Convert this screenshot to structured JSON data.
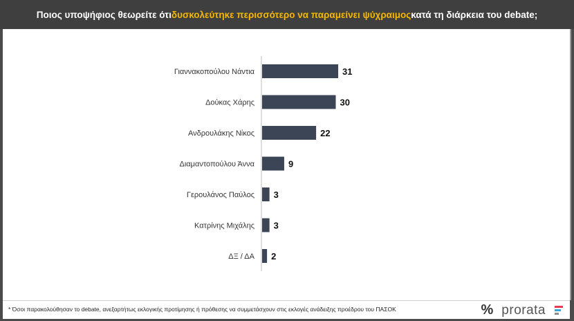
{
  "header": {
    "title_pre": "Ποιος υποψήφιος θεωρείτε ότι ",
    "title_highlight": "δυσκολεύτηκε περισσότερο να παραμείνει ψύχραιμος",
    "title_post": " κατά τη διάρκεια του debate;"
  },
  "footer": {
    "note": "* Όσοι παρακολούθησαν το debate, ανεξαρτήτως εκλογικής προτίμησης ή πρόθεσης να συμμετάσχουν στις εκλογές ανάδειξης προέδρου του ΠΑΣΟΚ",
    "logo_symbol": "%",
    "logo_text": "prorata"
  },
  "colors": {
    "bar": "#3b4555",
    "highlight": "#f5b800",
    "logo_bar_1": "#e63b5b",
    "logo_bar_2": "#3aa3d9",
    "logo_bar_3": "#8c8c8c"
  },
  "chart_data": {
    "type": "bar",
    "orientation": "horizontal",
    "categories": [
      "Γιαννακοπούλου Νάντια",
      "Δούκας Χάρης",
      "Ανδρουλάκης Νίκος",
      "Διαμαντοπούλου Άννα",
      "Γερουλάνος Παύλος",
      "Κατρίνης Μιχάλης",
      "ΔΞ / ΔΑ"
    ],
    "values": [
      31,
      30,
      22,
      9,
      3,
      3,
      2
    ],
    "title": "Ποιος υποψήφιος θεωρείτε ότι δυσκολεύτηκε περισσότερο να παραμείνει ψύχραιμος κατά τη διάρκεια του debate;",
    "xlabel": "",
    "ylabel": "",
    "grid": false,
    "legend": "none"
  }
}
